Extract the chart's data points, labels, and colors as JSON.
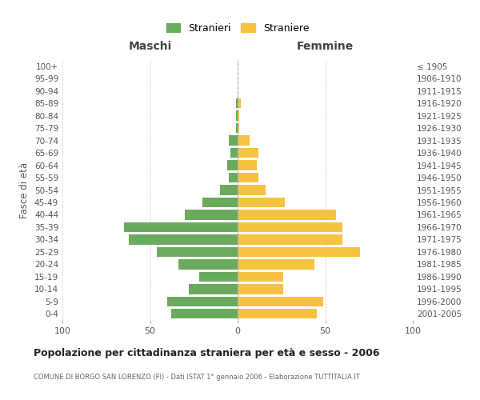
{
  "age_groups": [
    "0-4",
    "5-9",
    "10-14",
    "15-19",
    "20-24",
    "25-29",
    "30-34",
    "35-39",
    "40-44",
    "45-49",
    "50-54",
    "55-59",
    "60-64",
    "65-69",
    "70-74",
    "75-79",
    "80-84",
    "85-89",
    "90-94",
    "95-99",
    "100+"
  ],
  "birth_years": [
    "2001-2005",
    "1996-2000",
    "1991-1995",
    "1986-1990",
    "1981-1985",
    "1976-1980",
    "1971-1975",
    "1966-1970",
    "1961-1965",
    "1956-1960",
    "1951-1955",
    "1946-1950",
    "1941-1945",
    "1936-1940",
    "1931-1935",
    "1926-1930",
    "1921-1925",
    "1916-1920",
    "1911-1915",
    "1906-1910",
    "≤ 1905"
  ],
  "maschi": [
    38,
    40,
    28,
    22,
    34,
    46,
    62,
    65,
    30,
    20,
    10,
    5,
    6,
    4,
    5,
    1,
    1,
    1,
    0,
    0,
    0
  ],
  "femmine": [
    45,
    49,
    26,
    26,
    44,
    70,
    60,
    60,
    56,
    27,
    16,
    12,
    11,
    12,
    7,
    1,
    1,
    2,
    0,
    0,
    0
  ],
  "color_maschi": "#6aaa5e",
  "color_femmine": "#f5c242",
  "title": "Popolazione per cittadinanza straniera per età e sesso - 2006",
  "subtitle": "COMUNE DI BORGO SAN LORENZO (FI) - Dati ISTAT 1° gennaio 2006 - Elaborazione TUTTITALIA.IT",
  "xlabel_left": "Maschi",
  "xlabel_right": "Femmine",
  "ylabel_left": "Fasce di età",
  "legend_maschi": "Stranieri",
  "legend_femmine": "Straniere",
  "xlim": 100,
  "background_color": "#ffffff",
  "grid_color": "#cccccc",
  "bar_height": 0.8
}
